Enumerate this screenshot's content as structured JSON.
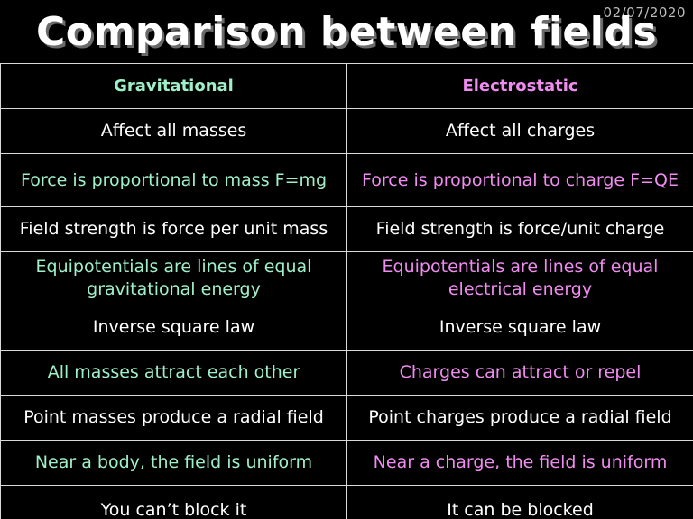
{
  "slide": {
    "date": "02/07/2020",
    "title": "Comparison between fields"
  },
  "colors": {
    "background": "#000000",
    "title": "#ffffff",
    "gravitational": "#9ff0c9",
    "electrostatic": "#f08cf0",
    "neutral": "#ffffff",
    "border": "#d8d8d8"
  },
  "table": {
    "headers": {
      "gravitational": "Gravitational",
      "electrostatic": "Electrostatic"
    },
    "rows": [
      {
        "gravitational": "Affect all masses",
        "electrostatic": "Affect all charges",
        "style": "white"
      },
      {
        "gravitational": "Force is proportional to mass F=mg",
        "electrostatic": "Force is proportional to charge F=QE",
        "style": "colored"
      },
      {
        "gravitational": "Field strength is force per unit mass",
        "electrostatic": "Field strength is force/unit charge",
        "style": "white"
      },
      {
        "gravitational": "Equipotentials are lines of equal gravitational energy",
        "electrostatic": "Equipotentials are lines of equal electrical energy",
        "style": "colored"
      },
      {
        "gravitational": "Inverse square law",
        "electrostatic": "Inverse square law",
        "style": "white"
      },
      {
        "gravitational": "All masses attract each other",
        "electrostatic": "Charges can attract or repel",
        "style": "colored"
      },
      {
        "gravitational": "Point masses produce a radial field",
        "electrostatic": "Point charges produce a radial field",
        "style": "white"
      },
      {
        "gravitational": "Near a body, the field is uniform",
        "electrostatic": "Near a charge, the field is uniform",
        "style": "colored"
      },
      {
        "gravitational": "You can’t block it",
        "electrostatic": "It can be blocked",
        "style": "white"
      }
    ]
  }
}
